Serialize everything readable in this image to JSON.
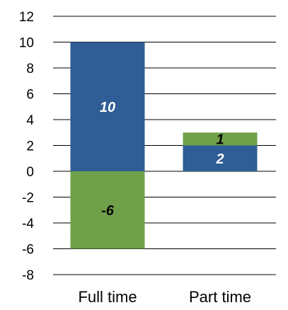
{
  "chart_data": {
    "type": "bar",
    "stacked": true,
    "categories": [
      "Full time",
      "Part time"
    ],
    "series": [
      {
        "values": [
          10,
          2
        ],
        "color": "#2f5d95",
        "label_color": "#ffffff",
        "data_labels": [
          "10",
          "2"
        ]
      },
      {
        "values": [
          -6,
          1
        ],
        "color": "#70a04a",
        "label_color": "#000000",
        "data_labels": [
          "-6",
          "1"
        ]
      }
    ],
    "ylim": [
      -8,
      12
    ],
    "yticks": [
      12,
      10,
      8,
      6,
      4,
      2,
      0,
      -2,
      -4,
      -6,
      -8
    ],
    "ytick_labels": [
      "12",
      "10",
      "8",
      "6",
      "4",
      "2",
      "0",
      "-2",
      "-4",
      "-6",
      "-8"
    ],
    "grid": true,
    "legend": "none",
    "title": "",
    "xlabel": "",
    "ylabel": ""
  }
}
